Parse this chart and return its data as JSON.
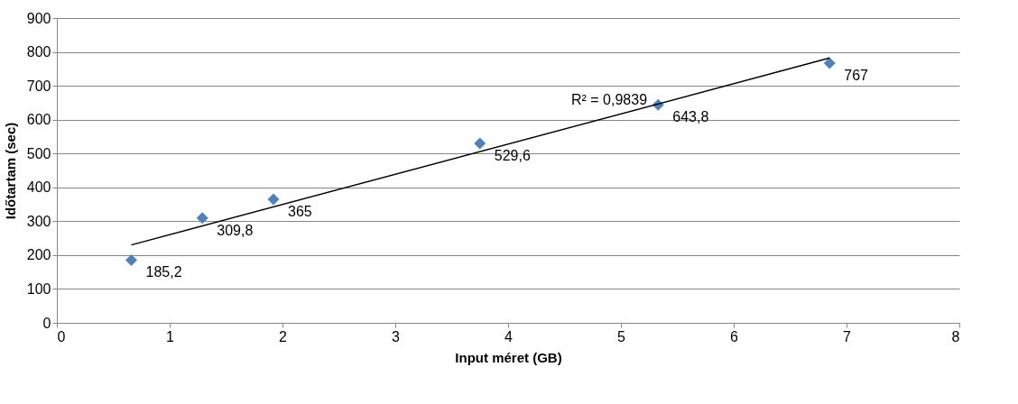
{
  "chart_data": {
    "type": "scatter",
    "xlabel": "Input méret (GB)",
    "ylabel": "Időtartam (sec)",
    "xlim": [
      0,
      8
    ],
    "xticks": [
      0,
      1,
      2,
      3,
      4,
      5,
      6,
      7,
      8
    ],
    "ylim": [
      0,
      900
    ],
    "yticks": [
      0,
      100,
      200,
      300,
      400,
      500,
      600,
      700,
      800,
      900
    ],
    "grid": "y",
    "series": [
      {
        "marker": "diamond",
        "color": "#4f81bd",
        "x": [
          0.66,
          1.29,
          1.92,
          3.75,
          5.33,
          6.85
        ],
        "values": [
          185.2,
          309.8,
          365,
          529.6,
          643.8,
          767
        ],
        "value_labels": [
          "185,2",
          "309,8",
          "365",
          "529,6",
          "643,8",
          "767"
        ]
      },
      {
        "type": "line",
        "color": "#000000",
        "x": [
          0.66,
          6.85
        ],
        "values": [
          230,
          782
        ]
      }
    ],
    "annotations": [
      "R² = 0,9839"
    ]
  }
}
